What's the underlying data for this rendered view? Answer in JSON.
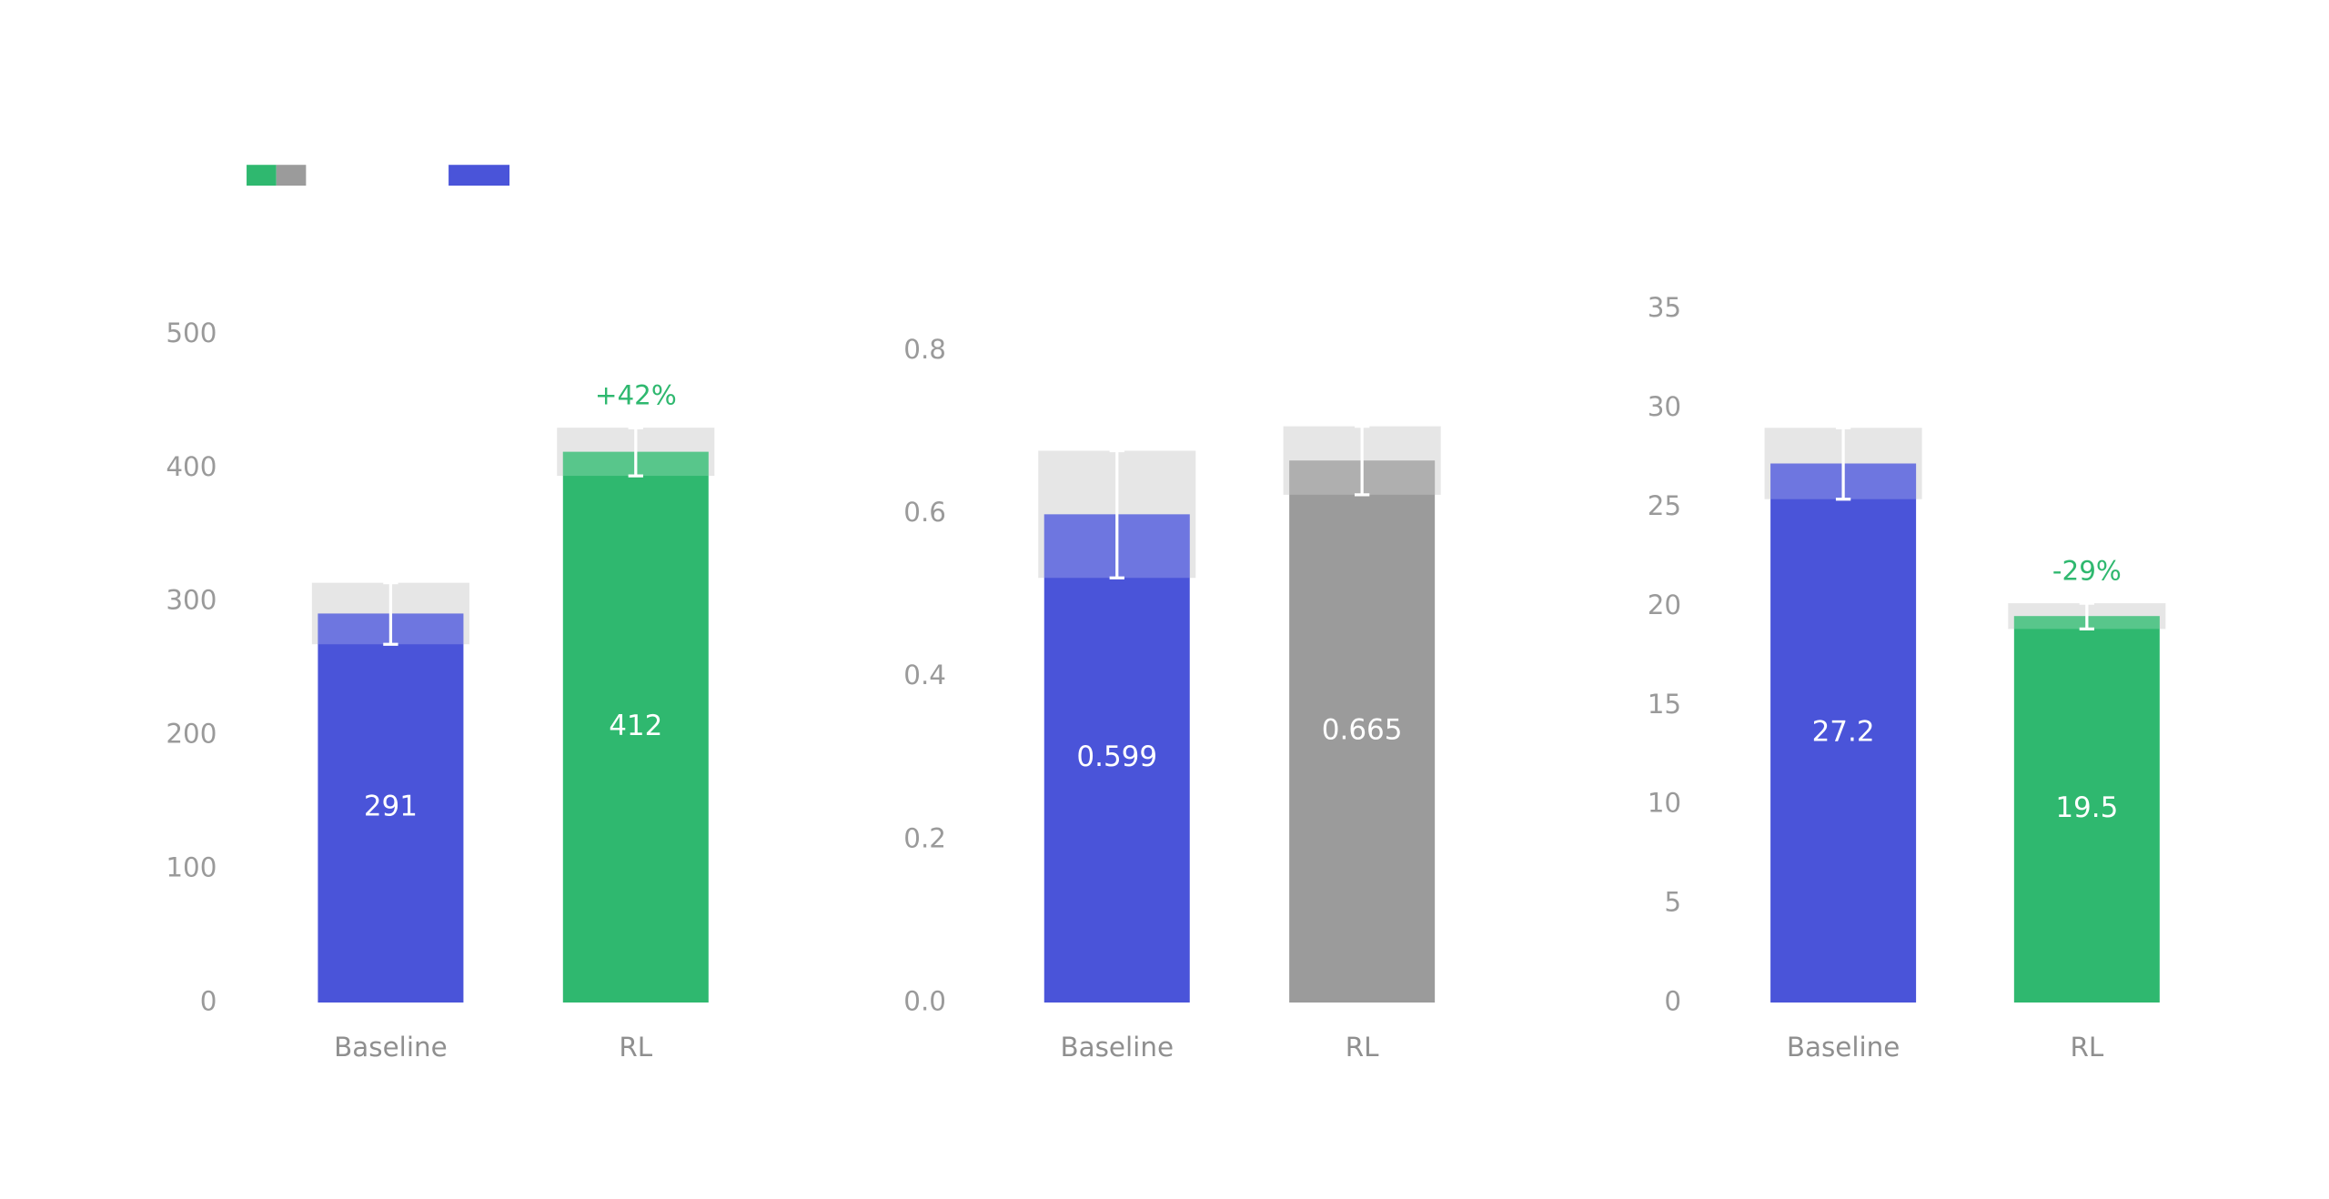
{
  "chart_data": [
    {
      "type": "bar",
      "categories": [
        "Baseline",
        "RL"
      ],
      "values": [
        291,
        412
      ],
      "errors": [
        23,
        18
      ],
      "colors": [
        "#4a54d9",
        "#2fb86f"
      ],
      "annotations": [
        null,
        "+42%"
      ],
      "ylim": [
        0,
        500
      ],
      "yticks": [
        0,
        100,
        200,
        300,
        400,
        500
      ]
    },
    {
      "type": "bar",
      "categories": [
        "Baseline",
        "RL"
      ],
      "values": [
        0.599,
        0.665
      ],
      "errors": [
        0.078,
        0.042
      ],
      "colors": [
        "#4a54d9",
        "#9b9b9b"
      ],
      "ylim": [
        0,
        0.8
      ],
      "yticks": [
        {
          "value": 0,
          "label": "0.0"
        },
        0.2,
        0.4,
        0.6,
        0.8
      ]
    },
    {
      "type": "bar",
      "categories": [
        "Baseline",
        "RL"
      ],
      "values": [
        27.2,
        19.5
      ],
      "errors": [
        1.8,
        0.65
      ],
      "colors": [
        "#4a54d9",
        "#2fb86f"
      ],
      "annotations": [
        null,
        "-29%"
      ],
      "ylim": [
        0,
        35
      ],
      "yticks": [
        0,
        5,
        10,
        15,
        20,
        25,
        30,
        35
      ]
    }
  ]
}
